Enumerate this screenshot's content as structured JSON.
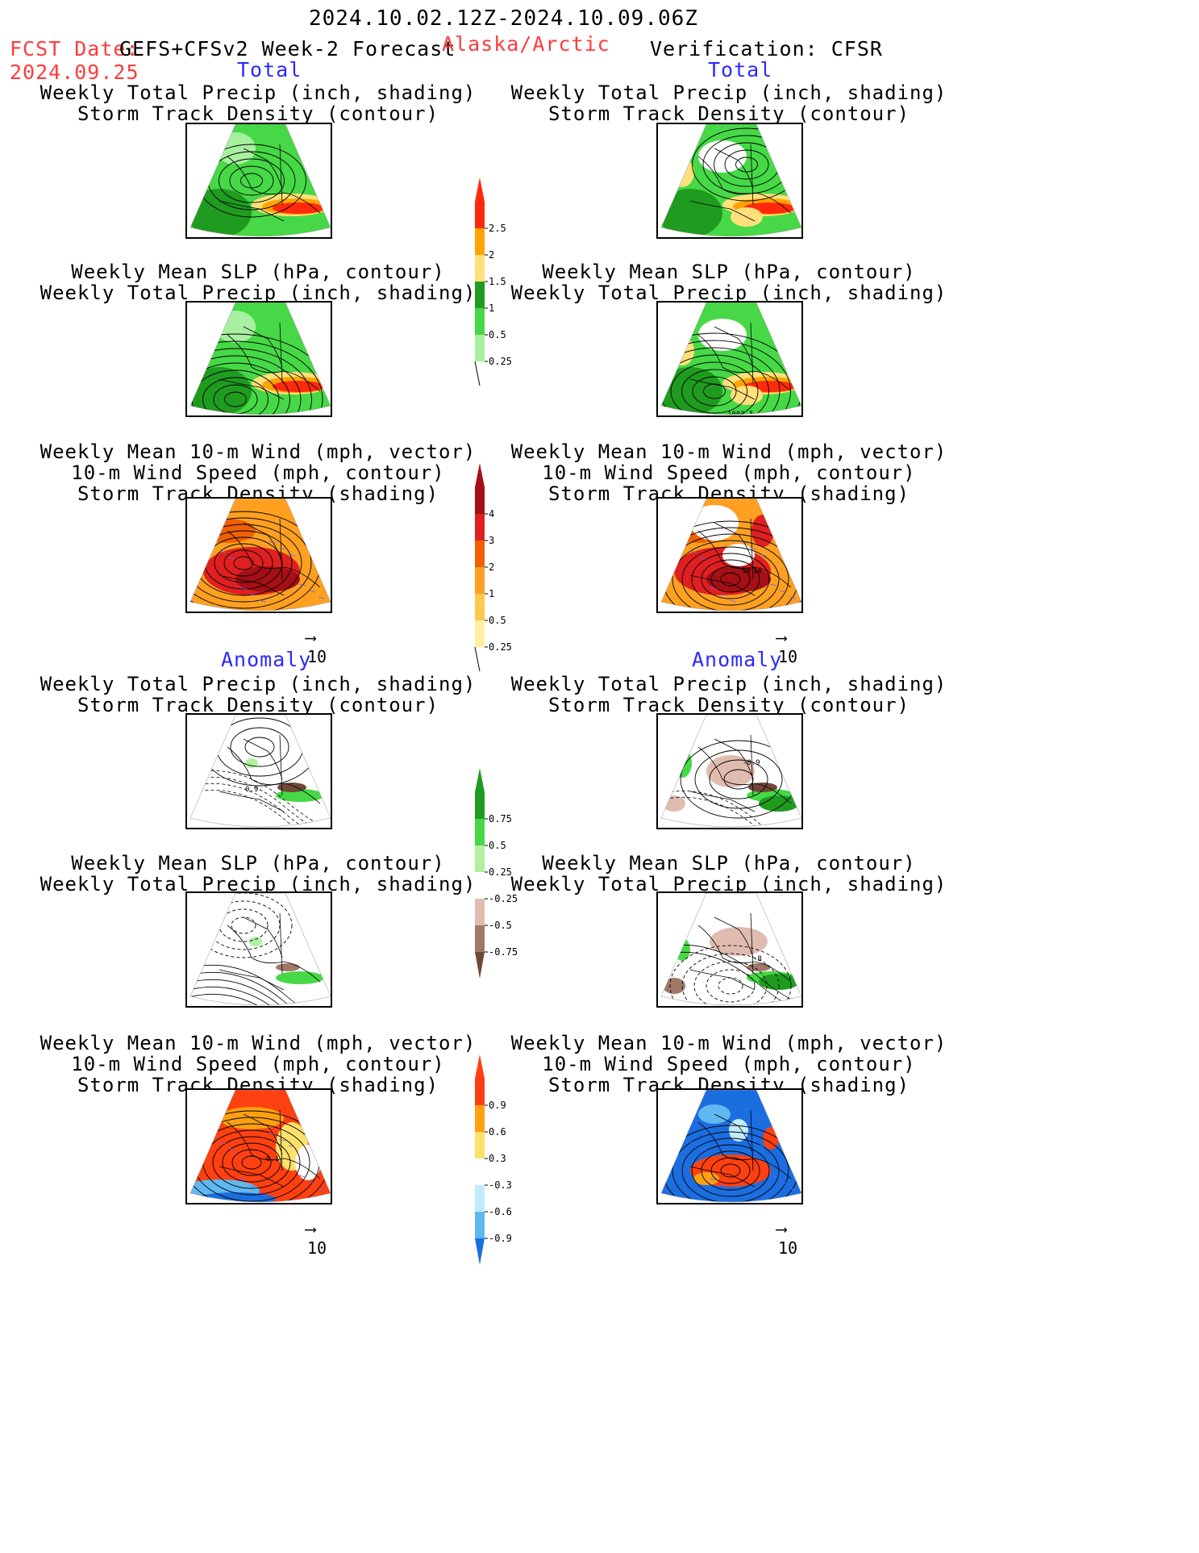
{
  "header": {
    "period": "2024.10.02.12Z-2024.10.09.06Z",
    "fcst_label": "FCST Date:",
    "fcst_model": "GEFS+CFSv2 Week-2 Forecast",
    "fcst_date": "2024.09.25",
    "region": "Alaska/Arctic",
    "verification": "Verification: CFSR"
  },
  "sections": {
    "total": "Total",
    "anomaly": "Anomaly"
  },
  "titles": {
    "precip_track": [
      "Weekly Total Precip (inch, shading)",
      "Storm Track Density (contour)"
    ],
    "slp_precip": [
      "Weekly Mean SLP (hPa, contour)",
      "Weekly Total Precip (inch, shading)"
    ],
    "wind_track": [
      "Weekly Mean 10-m Wind (mph, vector)",
      "10-m Wind Speed (mph, contour)",
      "Storm Track Density (shading)"
    ]
  },
  "vector_ref": "10",
  "panel_labels": {
    "fcst_anom_precip": "0.9",
    "fcst_anom_wind": "0.1",
    "obs_total_slp": "1002.5",
    "obs_total_wind_a": "10",
    "obs_total_wind_b": "14",
    "obs_anom_precip": "-0.9",
    "obs_anom_slp": "-8"
  },
  "colorbars": [
    {
      "name": "precip-total",
      "labels": [
        "2.5",
        "2",
        "1.5",
        "1",
        "0.5",
        "0.25"
      ],
      "colors": [
        "#ff2a0e",
        "#ffa400",
        "#ffe07a",
        "#1f9c1f",
        "#46d846",
        "#a8f0a0"
      ]
    },
    {
      "name": "track-total",
      "labels": [
        "4",
        "3",
        "2",
        "1",
        "0.5",
        "0.25"
      ],
      "colors": [
        "#a50f15",
        "#e02020",
        "#f06000",
        "#ffa020",
        "#ffc850",
        "#fff0a0"
      ]
    },
    {
      "name": "precip-anom",
      "labels": [
        "0.75",
        "0.5",
        "0.25",
        "-0.25",
        "-0.5",
        "-0.75"
      ],
      "colors": [
        "#1f9c1f",
        "#46d846",
        "#b0f0a0",
        "#ffffff",
        "#e0bcb0",
        "#a07868",
        "#704838"
      ]
    },
    {
      "name": "track-anom",
      "labels": [
        "0.9",
        "0.6",
        "0.3",
        "-0.3",
        "-0.6",
        "-0.9"
      ],
      "colors": [
        "#ff4010",
        "#ffa010",
        "#ffe06a",
        "#ffffff",
        "#c0ecff",
        "#60b8f0",
        "#1a6ee0"
      ]
    }
  ]
}
